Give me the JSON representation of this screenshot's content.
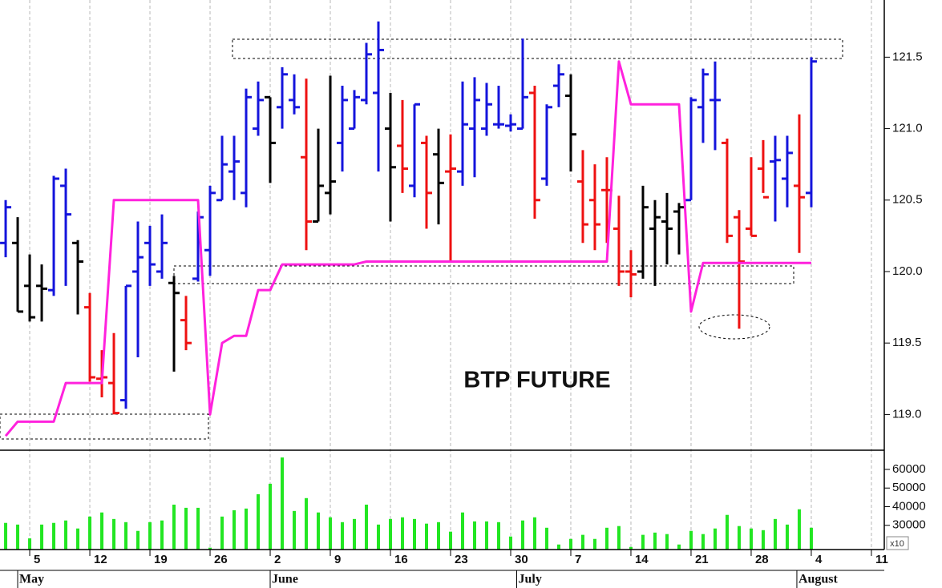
{
  "chart_data": {
    "type": "ohlc",
    "annotation": "BTP FUTURE",
    "x": [
      0,
      1,
      2,
      3,
      4,
      5,
      6,
      7,
      8,
      9,
      10,
      11,
      12,
      13,
      14,
      15,
      16,
      17,
      18,
      19,
      20,
      21,
      22,
      23,
      24,
      25,
      26,
      27,
      28,
      29,
      30,
      31,
      32,
      33,
      34,
      35,
      36,
      37,
      38,
      39,
      40,
      41,
      42,
      43,
      44,
      45,
      46,
      47,
      48,
      49,
      50,
      51,
      52,
      53,
      54,
      55,
      56,
      57,
      58,
      59,
      60,
      61,
      62,
      63,
      64,
      65,
      66,
      67
    ],
    "open": [
      120.2,
      120.2,
      119.9,
      119.9,
      119.87,
      120.6,
      120.2,
      119.75,
      119.25,
      119.22,
      119.1,
      120.0,
      120.2,
      120.0,
      119.92,
      119.66,
      119.95,
      120.15,
      120.5,
      120.7,
      120.55,
      121.0,
      121.22,
      121.15,
      121.2,
      120.8,
      120.35,
      120.55,
      120.9,
      121.0,
      121.2,
      121.25,
      121.0,
      120.88,
      120.6,
      120.9,
      120.82,
      120.7,
      120.7,
      121.0,
      121.0,
      121.03,
      121.02,
      121.0,
      121.25,
      120.65,
      121.3,
      121.23,
      120.63,
      120.5,
      120.57,
      120.3,
      120.0,
      120.0,
      120.3,
      120.35,
      120.42,
      120.5,
      121.15,
      121.2,
      120.9,
      120.38,
      120.3,
      120.72,
      120.77,
      120.65,
      120.6,
      120.55
    ],
    "high": [
      120.5,
      120.38,
      120.12,
      120.05,
      120.67,
      120.72,
      120.22,
      119.85,
      119.45,
      119.57,
      119.9,
      120.35,
      120.32,
      120.4,
      119.97,
      119.83,
      120.42,
      120.6,
      120.95,
      120.95,
      121.28,
      121.33,
      121.22,
      121.43,
      121.38,
      121.35,
      121.0,
      121.37,
      121.3,
      121.27,
      121.6,
      121.75,
      121.25,
      121.2,
      121.17,
      120.95,
      121.0,
      120.96,
      121.33,
      121.36,
      121.32,
      121.3,
      121.1,
      121.63,
      121.3,
      121.17,
      121.45,
      121.38,
      120.85,
      120.75,
      120.8,
      120.53,
      120.15,
      120.6,
      120.5,
      120.55,
      120.48,
      121.22,
      121.42,
      121.47,
      120.93,
      120.43,
      120.8,
      120.92,
      120.95,
      120.95,
      121.1,
      121.5
    ],
    "low": [
      120.1,
      119.72,
      119.65,
      119.65,
      119.83,
      119.9,
      119.7,
      119.23,
      119.12,
      119.0,
      119.04,
      119.4,
      119.9,
      119.95,
      119.3,
      119.45,
      119.93,
      119.97,
      120.5,
      120.5,
      120.45,
      120.95,
      120.62,
      121.0,
      121.1,
      120.15,
      120.35,
      120.4,
      120.7,
      121.0,
      121.17,
      120.7,
      120.35,
      120.55,
      120.52,
      120.3,
      120.33,
      120.07,
      120.6,
      120.66,
      120.95,
      121.0,
      120.98,
      121.0,
      120.37,
      120.6,
      121.15,
      120.7,
      120.2,
      120.15,
      120.2,
      119.9,
      119.82,
      119.95,
      119.9,
      120.05,
      120.12,
      120.5,
      120.9,
      120.85,
      120.2,
      119.6,
      120.25,
      120.55,
      120.35,
      120.45,
      120.13,
      120.45
    ],
    "close": [
      120.45,
      119.72,
      119.68,
      119.88,
      120.65,
      120.4,
      120.07,
      119.26,
      119.26,
      119.01,
      119.9,
      120.1,
      120.05,
      120.2,
      119.85,
      119.5,
      120.38,
      120.55,
      120.75,
      120.77,
      121.22,
      121.2,
      120.9,
      121.38,
      121.15,
      120.35,
      120.6,
      120.63,
      121.2,
      121.22,
      121.52,
      121.55,
      120.73,
      120.72,
      121.17,
      120.55,
      120.62,
      120.72,
      121.03,
      121.2,
      121.17,
      121.03,
      121.03,
      121.22,
      120.5,
      121.15,
      121.38,
      120.96,
      120.33,
      120.33,
      120.57,
      120.0,
      119.98,
      120.45,
      120.38,
      120.3,
      120.45,
      121.2,
      121.38,
      121.2,
      120.25,
      120.07,
      120.25,
      120.52,
      120.78,
      120.83,
      120.52,
      121.47
    ],
    "colors": [
      "#1414dc",
      "#000000",
      "#000000",
      "#000000",
      "#1414dc",
      "#1414dc",
      "#000000",
      "#ee1111",
      "#ee1111",
      "#ee1111",
      "#1414dc",
      "#1414dc",
      "#1414dc",
      "#1414dc",
      "#000000",
      "#ee1111",
      "#1414dc",
      "#1414dc",
      "#1414dc",
      "#1414dc",
      "#1414dc",
      "#1414dc",
      "#000000",
      "#1414dc",
      "#1414dc",
      "#ee1111",
      "#000000",
      "#000000",
      "#1414dc",
      "#1414dc",
      "#1414dc",
      "#1414dc",
      "#000000",
      "#ee1111",
      "#1414dc",
      "#ee1111",
      "#000000",
      "#ee1111",
      "#1414dc",
      "#1414dc",
      "#1414dc",
      "#1414dc",
      "#1414dc",
      "#1414dc",
      "#ee1111",
      "#1414dc",
      "#1414dc",
      "#000000",
      "#ee1111",
      "#ee1111",
      "#ee1111",
      "#ee1111",
      "#ee1111",
      "#000000",
      "#000000",
      "#000000",
      "#000000",
      "#1414dc",
      "#1414dc",
      "#1414dc",
      "#ee1111",
      "#ee1111",
      "#ee1111",
      "#ee1111",
      "#1414dc",
      "#1414dc",
      "#ee1111",
      "#1414dc"
    ],
    "xlim": [
      -0.47,
      73.07
    ],
    "ylim": [
      118.75,
      121.9
    ],
    "yticks": [
      {
        "value": 119,
        "label": "119.0"
      },
      119.5,
      {
        "value": 120,
        "label": "120.0"
      },
      120.5,
      {
        "value": 121,
        "label": "121.0"
      },
      121.5
    ],
    "xticks": [
      {
        "value": 2,
        "label": "5"
      },
      {
        "value": 7,
        "label": "12"
      },
      {
        "value": 12,
        "label": "19"
      },
      {
        "value": 17,
        "label": "26"
      },
      {
        "value": 22,
        "label": "2"
      },
      {
        "value": 27,
        "label": "9"
      },
      {
        "value": 32,
        "label": "16"
      },
      {
        "value": 37,
        "label": "23"
      },
      {
        "value": 42,
        "label": "30"
      },
      {
        "value": 47,
        "label": "7"
      },
      {
        "value": 52,
        "label": "14"
      },
      {
        "value": 57,
        "label": "21"
      },
      {
        "value": 62,
        "label": "28"
      },
      {
        "value": 67,
        "label": "4"
      },
      {
        "value": 72,
        "label": "11"
      }
    ],
    "month_ticks": [
      {
        "value": 1,
        "label": "May"
      },
      {
        "value": 22,
        "label": "June"
      },
      {
        "value": 42.5,
        "label": "July"
      },
      {
        "value": 65.8,
        "label": "August"
      }
    ],
    "grid": true,
    "line": {
      "color": "#ff22dd",
      "x": [
        0,
        1,
        4,
        5,
        8,
        9,
        16,
        17,
        18,
        19,
        20,
        21,
        22,
        23,
        29,
        30,
        50,
        51,
        52,
        56,
        57,
        58,
        67
      ],
      "values": [
        118.85,
        118.95,
        118.95,
        119.22,
        119.22,
        120.5,
        120.5,
        119.0,
        119.5,
        119.55,
        119.55,
        119.87,
        119.87,
        120.05,
        120.05,
        120.07,
        120.07,
        121.47,
        121.17,
        121.17,
        119.72,
        120.06,
        120.06
      ]
    },
    "volume": {
      "type": "bar",
      "color": "#22e622",
      "values": [
        31300,
        30400,
        23000,
        30400,
        31300,
        32600,
        28300,
        34700,
        36900,
        33400,
        31700,
        27000,
        31700,
        32600,
        41100,
        39400,
        39400,
        18000,
        34700,
        38100,
        39000,
        46700,
        52300,
        66400,
        37700,
        44600,
        36900,
        34300,
        31700,
        33400,
        41100,
        30400,
        33400,
        34300,
        33400,
        30900,
        31700,
        26600,
        36900,
        32100,
        32100,
        31700,
        24000,
        32600,
        34300,
        28700,
        19700,
        22700,
        24900,
        22700,
        28700,
        29600,
        18400,
        24900,
        26100,
        25300,
        19700,
        27000,
        25300,
        28300,
        35600,
        29600,
        28300,
        27400,
        33400,
        30400,
        38600,
        28700
      ],
      "ylim": [
        17000,
        70300
      ],
      "yticks": [
        30000,
        40000,
        50000,
        60000
      ],
      "scale_label": "x10"
    }
  }
}
